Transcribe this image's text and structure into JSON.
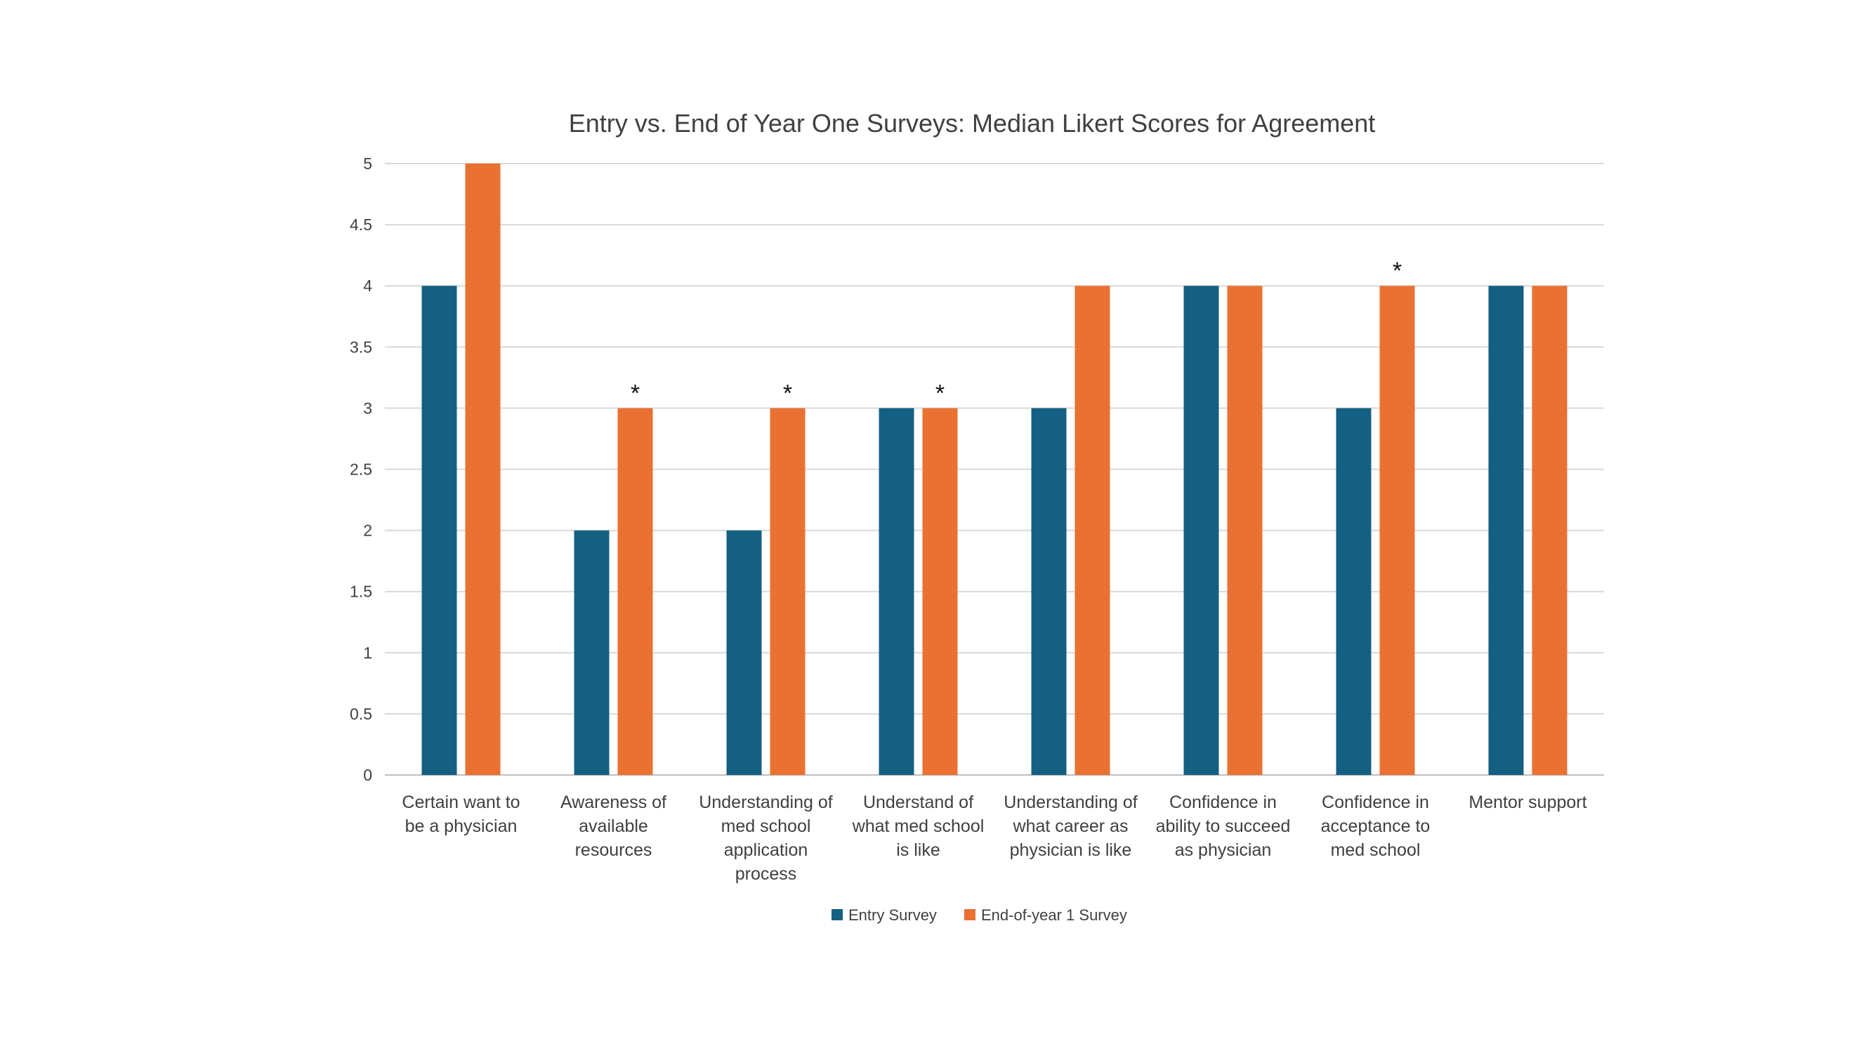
{
  "chart_data": {
    "type": "bar",
    "title": "Entry vs. End of Year One Surveys: Median Likert Scores for Agreement",
    "xlabel": "",
    "ylabel": "",
    "ylim": [
      0,
      5
    ],
    "yticks": [
      "0",
      "0.5",
      "1",
      "1.5",
      "2",
      "2.5",
      "3",
      "3.5",
      "4",
      "4.5",
      "5"
    ],
    "grid": true,
    "legend_position": "bottom",
    "categories": [
      [
        "Certain want to",
        "be a physician"
      ],
      [
        "Awareness of",
        "available",
        "resources"
      ],
      [
        "Understanding of",
        "med school",
        "application",
        "process"
      ],
      [
        "Understand of",
        "what med school",
        "is like"
      ],
      [
        "Understanding of",
        "what career as",
        "physician is like"
      ],
      [
        "Confidence in",
        "ability to succeed",
        "as physician"
      ],
      [
        "Confidence in",
        "acceptance to",
        "med school"
      ],
      [
        "Mentor support"
      ]
    ],
    "series": [
      {
        "name": "Entry Survey",
        "color": "#156082",
        "values": [
          4,
          2,
          2,
          3,
          3,
          4,
          3,
          4
        ]
      },
      {
        "name": "End-of-year 1 Survey",
        "color": "#E97132",
        "values": [
          5,
          3,
          3,
          3,
          4,
          4,
          4,
          4
        ]
      }
    ],
    "annotations": [
      {
        "category_index": 1,
        "text": "*"
      },
      {
        "category_index": 2,
        "text": "*"
      },
      {
        "category_index": 3,
        "text": "*"
      },
      {
        "category_index": 6,
        "text": "*"
      }
    ]
  }
}
